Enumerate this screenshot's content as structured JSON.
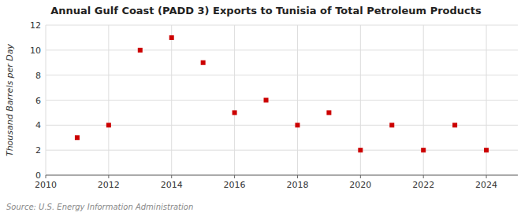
{
  "chart_data": {
    "type": "scatter",
    "title": "Annual Gulf Coast (PADD 3) Exports to Tunisia of Total Petroleum Products",
    "ylabel": "Thousand Barrels per Day",
    "source": "Source: U.S. Energy Information Administration",
    "x": [
      2011,
      2012,
      2013,
      2014,
      2015,
      2016,
      2017,
      2018,
      2019,
      2020,
      2021,
      2022,
      2023,
      2024
    ],
    "values": [
      3,
      4,
      10,
      11,
      9,
      5,
      6,
      4,
      5,
      2,
      4,
      2,
      4,
      2
    ],
    "color": "#cc0000",
    "marker": "square",
    "xlim": [
      2010,
      2025
    ],
    "ylim": [
      0,
      12
    ],
    "xticks": [
      2010,
      2012,
      2014,
      2016,
      2018,
      2020,
      2022,
      2024
    ],
    "yticks": [
      0,
      2,
      4,
      6,
      8,
      10,
      12
    ],
    "grid": true
  }
}
